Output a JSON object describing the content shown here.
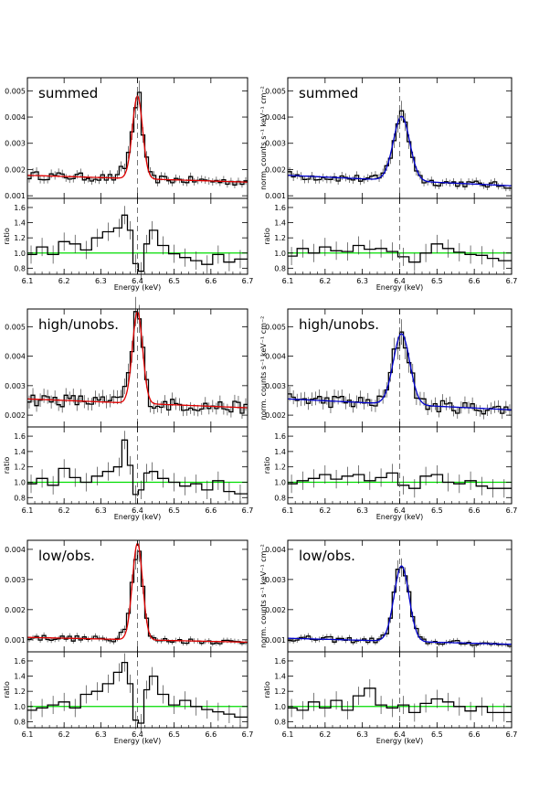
{
  "colors": {
    "data": "#000000",
    "model_left": "#e00000",
    "model_right": "#0000cc",
    "ratio_line": "#00dd00",
    "line_marker": "#555555"
  },
  "chart_data": [
    {
      "type": "line",
      "label": "summed",
      "column": "left",
      "model_color": "red",
      "spectrum": {
        "ylabel": "",
        "ylim": [
          0.0009,
          0.0055
        ],
        "yticks": [
          0.001,
          0.002,
          0.003,
          0.004,
          0.005
        ],
        "ytick_labels": [
          "0.001",
          "0.002",
          "0.003",
          "0.004",
          "0.005"
        ],
        "continuum": [
          0.00178,
          0.00152
        ],
        "peak_energy": 6.4,
        "peak_height": 0.00315,
        "sigma": 0.014
      },
      "ratio": {
        "ylabel": "ratio",
        "ylim": [
          0.72,
          1.72
        ],
        "yticks": [
          0.8,
          1.0,
          1.2,
          1.4,
          1.6
        ],
        "ytick_labels": [
          "0.8",
          "1.0",
          "1.2",
          "1.4",
          "1.6"
        ],
        "unity": 1.0,
        "x": [
          6.11,
          6.14,
          6.17,
          6.2,
          6.23,
          6.26,
          6.29,
          6.32,
          6.35,
          6.365,
          6.38,
          6.395,
          6.41,
          6.425,
          6.44,
          6.47,
          6.5,
          6.53,
          6.56,
          6.59,
          6.62,
          6.65,
          6.68
        ],
        "y": [
          0.98,
          1.08,
          0.98,
          1.15,
          1.12,
          1.04,
          1.2,
          1.28,
          1.33,
          1.5,
          1.3,
          0.86,
          0.76,
          1.12,
          1.3,
          1.1,
          0.99,
          0.94,
          0.9,
          0.85,
          0.98,
          0.88,
          0.92
        ]
      },
      "xaxis": {
        "label": "Energy (keV)",
        "range": [
          6.1,
          6.7
        ],
        "ticks": [
          6.1,
          6.2,
          6.3,
          6.4,
          6.5,
          6.6,
          6.7
        ],
        "tick_labels": [
          "6.1",
          "6.2",
          "6.3",
          "6.4",
          "6.5",
          "6.6",
          "6.7"
        ]
      },
      "dashed_line_energy": 6.4
    },
    {
      "type": "line",
      "label": "summed",
      "column": "right",
      "model_color": "blue",
      "spectrum": {
        "ylabel": "norm. counts s⁻¹ keV⁻¹ cm⁻²",
        "ylim": [
          0.0009,
          0.0055
        ],
        "yticks": [
          0.001,
          0.002,
          0.003,
          0.004,
          0.005
        ],
        "ytick_labels": [
          "0.001",
          "0.002",
          "0.003",
          "0.004",
          "0.005"
        ],
        "continuum": [
          0.00178,
          0.00138
        ],
        "peak_energy": 6.405,
        "peak_height": 0.00245,
        "sigma": 0.022
      },
      "ratio": {
        "ylabel": "ratio",
        "ylim": [
          0.72,
          1.72
        ],
        "yticks": [
          0.8,
          1.0,
          1.2,
          1.4,
          1.6
        ],
        "ytick_labels": [
          "0.8",
          "1.0",
          "1.2",
          "1.4",
          "1.6"
        ],
        "unity": 1.0,
        "x": [
          6.11,
          6.14,
          6.17,
          6.2,
          6.23,
          6.26,
          6.29,
          6.32,
          6.35,
          6.38,
          6.41,
          6.44,
          6.47,
          6.5,
          6.53,
          6.56,
          6.59,
          6.62,
          6.65,
          6.68
        ],
        "y": [
          0.96,
          1.06,
          1.0,
          1.08,
          1.03,
          1.02,
          1.1,
          1.05,
          1.06,
          1.02,
          0.95,
          0.88,
          1.0,
          1.12,
          1.06,
          1.01,
          0.98,
          0.97,
          0.93,
          0.9
        ]
      },
      "xaxis": {
        "label": "Energy (keV)",
        "range": [
          6.1,
          6.7
        ],
        "ticks": [
          6.1,
          6.2,
          6.3,
          6.4,
          6.5,
          6.6,
          6.7
        ],
        "tick_labels": [
          "6.1",
          "6.2",
          "6.3",
          "6.4",
          "6.5",
          "6.6",
          "6.7"
        ]
      },
      "dashed_line_energy": 6.4
    },
    {
      "type": "line",
      "label": "high/unobs.",
      "column": "left",
      "model_color": "red",
      "spectrum": {
        "ylabel": "",
        "ylim": [
          0.0016,
          0.0056
        ],
        "yticks": [
          0.002,
          0.003,
          0.004,
          0.005
        ],
        "ytick_labels": [
          "0.002",
          "0.003",
          "0.004",
          "0.005"
        ],
        "continuum": [
          0.00255,
          0.00225
        ],
        "peak_energy": 6.4,
        "peak_height": 0.0031,
        "sigma": 0.014
      },
      "ratio": {
        "ylabel": "ratio",
        "ylim": [
          0.72,
          1.72
        ],
        "yticks": [
          0.8,
          1.0,
          1.2,
          1.4,
          1.6
        ],
        "ytick_labels": [
          "0.8",
          "1.0",
          "1.2",
          "1.4",
          "1.6"
        ],
        "unity": 1.0,
        "x": [
          6.11,
          6.14,
          6.17,
          6.2,
          6.23,
          6.26,
          6.29,
          6.32,
          6.35,
          6.365,
          6.38,
          6.395,
          6.41,
          6.425,
          6.44,
          6.47,
          6.5,
          6.53,
          6.56,
          6.59,
          6.62,
          6.65,
          6.68
        ],
        "y": [
          0.98,
          1.05,
          0.96,
          1.18,
          1.06,
          1.0,
          1.08,
          1.14,
          1.2,
          1.55,
          1.22,
          0.84,
          0.9,
          1.12,
          1.14,
          1.05,
          1.0,
          0.95,
          0.98,
          0.9,
          1.02,
          0.88,
          0.85
        ]
      },
      "xaxis": {
        "label": "Energy (keV)",
        "range": [
          6.1,
          6.7
        ],
        "ticks": [
          6.1,
          6.2,
          6.3,
          6.4,
          6.5,
          6.6,
          6.7
        ],
        "tick_labels": [
          "6.1",
          "6.2",
          "6.3",
          "6.4",
          "6.5",
          "6.6",
          "6.7"
        ]
      },
      "dashed_line_energy": 6.4
    },
    {
      "type": "line",
      "label": "high/unobs.",
      "column": "right",
      "model_color": "blue",
      "spectrum": {
        "ylabel": "norm. counts s⁻¹ keV⁻¹ cm⁻²",
        "ylim": [
          0.0016,
          0.0056
        ],
        "yticks": [
          0.002,
          0.003,
          0.004,
          0.005
        ],
        "ytick_labels": [
          "0.002",
          "0.003",
          "0.004",
          "0.005"
        ],
        "continuum": [
          0.00255,
          0.00218
        ],
        "peak_energy": 6.405,
        "peak_height": 0.0024,
        "sigma": 0.022
      },
      "ratio": {
        "ylabel": "ratio",
        "ylim": [
          0.72,
          1.72
        ],
        "yticks": [
          0.8,
          1.0,
          1.2,
          1.4,
          1.6
        ],
        "ytick_labels": [
          "0.8",
          "1.0",
          "1.2",
          "1.4",
          "1.6"
        ],
        "unity": 1.0,
        "x": [
          6.11,
          6.14,
          6.17,
          6.2,
          6.23,
          6.26,
          6.29,
          6.32,
          6.35,
          6.38,
          6.41,
          6.44,
          6.47,
          6.5,
          6.53,
          6.56,
          6.59,
          6.62,
          6.65,
          6.68
        ],
        "y": [
          0.98,
          1.02,
          1.05,
          1.1,
          1.04,
          1.08,
          1.1,
          1.02,
          1.06,
          1.12,
          0.96,
          0.92,
          1.08,
          1.1,
          1.0,
          0.98,
          1.02,
          0.95,
          0.92,
          0.92
        ]
      },
      "xaxis": {
        "label": "Energy (keV)",
        "range": [
          6.1,
          6.7
        ],
        "ticks": [
          6.1,
          6.2,
          6.3,
          6.4,
          6.5,
          6.6,
          6.7
        ],
        "tick_labels": [
          "6.1",
          "6.2",
          "6.3",
          "6.4",
          "6.5",
          "6.6",
          "6.7"
        ]
      },
      "dashed_line_energy": 6.4
    },
    {
      "type": "line",
      "label": "low/obs.",
      "column": "left",
      "model_color": "red",
      "spectrum": {
        "ylabel": "",
        "ylim": [
          0.0006,
          0.0043
        ],
        "yticks": [
          0.001,
          0.002,
          0.003,
          0.004
        ],
        "ytick_labels": [
          "0.001",
          "0.002",
          "0.003",
          "0.004"
        ],
        "continuum": [
          0.00108,
          0.00092
        ],
        "peak_energy": 6.4,
        "peak_height": 0.0032,
        "sigma": 0.014
      },
      "ratio": {
        "ylabel": "ratio",
        "ylim": [
          0.72,
          1.72
        ],
        "yticks": [
          0.8,
          1.0,
          1.2,
          1.4,
          1.6
        ],
        "ytick_labels": [
          "0.8",
          "1.0",
          "1.2",
          "1.4",
          "1.6"
        ],
        "unity": 1.0,
        "x": [
          6.11,
          6.14,
          6.17,
          6.2,
          6.23,
          6.26,
          6.29,
          6.32,
          6.35,
          6.365,
          6.38,
          6.395,
          6.41,
          6.425,
          6.44,
          6.47,
          6.5,
          6.53,
          6.56,
          6.59,
          6.62,
          6.65,
          6.68
        ],
        "y": [
          0.95,
          0.98,
          1.02,
          1.06,
          0.98,
          1.16,
          1.2,
          1.3,
          1.45,
          1.58,
          1.3,
          0.82,
          0.78,
          1.22,
          1.4,
          1.16,
          1.02,
          1.08,
          1.0,
          0.96,
          0.93,
          0.9,
          0.86
        ]
      },
      "xaxis": {
        "label": "Energy (keV)",
        "range": [
          6.1,
          6.7
        ],
        "ticks": [
          6.1,
          6.2,
          6.3,
          6.4,
          6.5,
          6.6,
          6.7
        ],
        "tick_labels": [
          "6.1",
          "6.2",
          "6.3",
          "6.4",
          "6.5",
          "6.6",
          "6.7"
        ]
      },
      "dashed_line_energy": 6.4
    },
    {
      "type": "line",
      "label": "low/obs.",
      "column": "right",
      "model_color": "blue",
      "spectrum": {
        "ylabel": "norm. counts s⁻¹ keV⁻¹ cm⁻²",
        "ylim": [
          0.0006,
          0.0043
        ],
        "yticks": [
          0.001,
          0.002,
          0.003,
          0.004
        ],
        "ytick_labels": [
          "0.001",
          "0.002",
          "0.003",
          "0.004"
        ],
        "continuum": [
          0.00105,
          0.00085
        ],
        "peak_energy": 6.405,
        "peak_height": 0.0025,
        "sigma": 0.02
      },
      "ratio": {
        "ylabel": "ratio",
        "ylim": [
          0.72,
          1.72
        ],
        "yticks": [
          0.8,
          1.0,
          1.2,
          1.4,
          1.6
        ],
        "ytick_labels": [
          "0.8",
          "1.0",
          "1.2",
          "1.4",
          "1.6"
        ],
        "unity": 1.0,
        "x": [
          6.11,
          6.14,
          6.17,
          6.2,
          6.23,
          6.26,
          6.29,
          6.32,
          6.35,
          6.38,
          6.41,
          6.44,
          6.47,
          6.5,
          6.53,
          6.56,
          6.59,
          6.62,
          6.65,
          6.68
        ],
        "y": [
          0.98,
          0.95,
          1.06,
          0.98,
          1.08,
          0.95,
          1.14,
          1.24,
          1.02,
          0.98,
          1.02,
          0.92,
          1.04,
          1.1,
          1.06,
          1.0,
          0.94,
          1.0,
          0.92,
          0.92
        ]
      },
      "xaxis": {
        "label": "Energy (keV)",
        "range": [
          6.1,
          6.7
        ],
        "ticks": [
          6.1,
          6.2,
          6.3,
          6.4,
          6.5,
          6.6,
          6.7
        ],
        "tick_labels": [
          "6.1",
          "6.2",
          "6.3",
          "6.4",
          "6.5",
          "6.6",
          "6.7"
        ]
      },
      "dashed_line_energy": 6.4
    }
  ]
}
